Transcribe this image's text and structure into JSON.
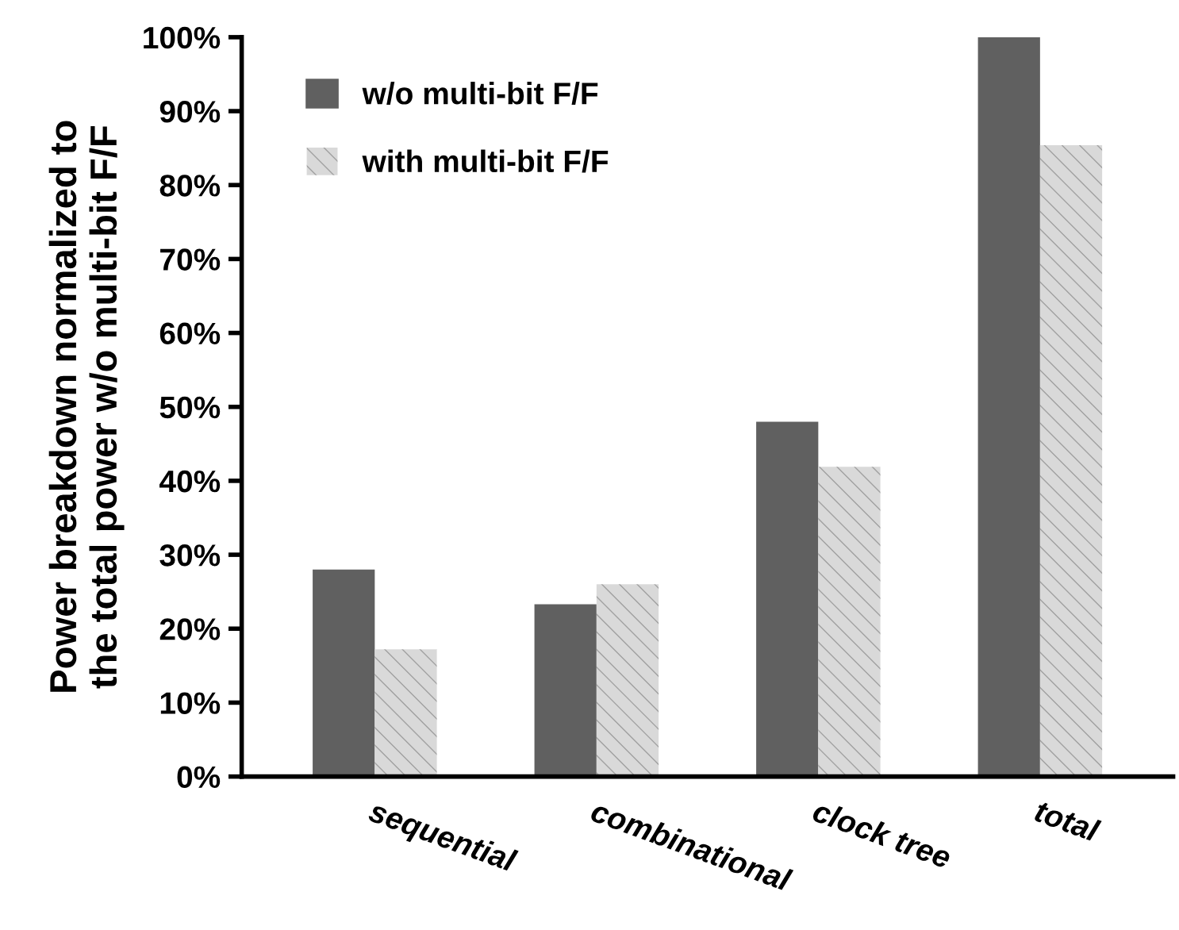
{
  "chart_data": {
    "type": "bar",
    "ylabel": "Power breakdown normalized to\nthe total power w/o multi-bit F/F",
    "categories": [
      "sequential",
      "combinational",
      "clock tree",
      "total"
    ],
    "series": [
      {
        "name": "w/o multi-bit F/F",
        "color": "#606060",
        "values": [
          28,
          23.3,
          48,
          100
        ]
      },
      {
        "name": "with multi-bit F/F",
        "color": "#d9d9d9",
        "values": [
          17.2,
          26,
          41.9,
          85.4
        ]
      }
    ],
    "ylim": [
      0,
      100
    ],
    "yticks": [
      {
        "value": 0,
        "label": "0%"
      },
      {
        "value": 10,
        "label": "10%"
      },
      {
        "value": 20,
        "label": "20%"
      },
      {
        "value": 30,
        "label": "30%"
      },
      {
        "value": 40,
        "label": "40%"
      },
      {
        "value": 50,
        "label": "50%"
      },
      {
        "value": 60,
        "label": "60%"
      },
      {
        "value": 70,
        "label": "70%"
      },
      {
        "value": 80,
        "label": "80%"
      },
      {
        "value": 90,
        "label": "90%"
      },
      {
        "value": 100,
        "label": "100%"
      }
    ],
    "grid": false,
    "legend": "top left"
  }
}
